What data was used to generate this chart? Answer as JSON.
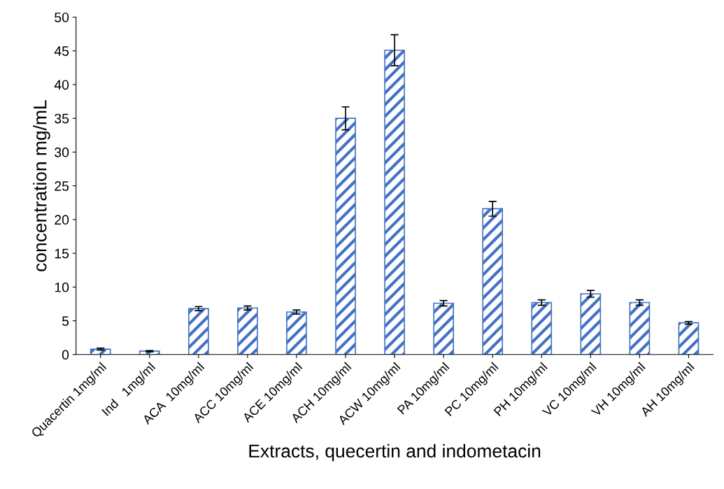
{
  "chart_data": {
    "type": "bar",
    "xlabel": "Extracts, quecertin and indometacin",
    "ylabel": "concentration mg/mL",
    "categories": [
      "Quacertin 1mg/ml",
      "Ind   1mg/ml",
      "ACA  10mg/ml",
      "ACC 10mg/ml",
      "ACE 10mg/ml",
      "ACH 10mg/ml",
      "ACW 10mg/ml",
      "PA 10mg/ml",
      "PC 10mg/ml",
      "PH 10mg/ml",
      "VC 10mg/ml",
      "VH 10mg/ml",
      "AH 10mg/ml"
    ],
    "values": [
      0.8,
      0.5,
      6.8,
      6.9,
      6.3,
      35.0,
      45.1,
      7.6,
      21.6,
      7.7,
      9.0,
      7.7,
      4.7
    ],
    "errors": [
      0.15,
      0.1,
      0.3,
      0.3,
      0.3,
      1.7,
      2.3,
      0.4,
      1.1,
      0.4,
      0.5,
      0.4,
      0.2
    ],
    "color": "#4472c4",
    "ylim": [
      0,
      50
    ],
    "yticks": [
      0,
      5,
      10,
      15,
      20,
      25,
      30,
      35,
      40,
      45,
      50
    ],
    "grid": false
  }
}
